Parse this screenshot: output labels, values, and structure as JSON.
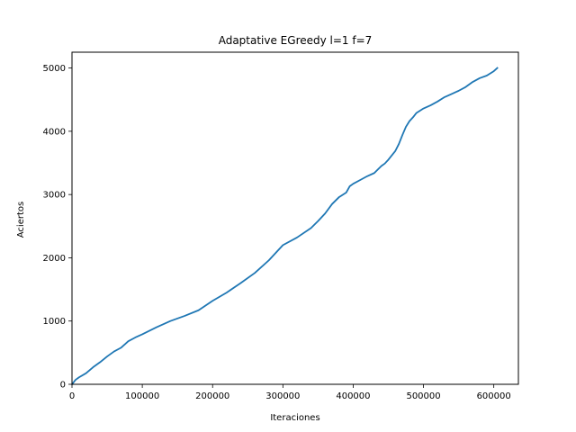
{
  "chart_data": {
    "type": "line",
    "title": "Adaptative EGreedy l=1 f=7",
    "xlabel": "Iteraciones",
    "ylabel": "Aciertos",
    "xlim": [
      0,
      635000
    ],
    "ylim": [
      0,
      5250
    ],
    "grid": false,
    "x_ticks": [
      0,
      100000,
      200000,
      300000,
      400000,
      500000,
      600000
    ],
    "x_tick_labels": [
      "0",
      "100000",
      "200000",
      "300000",
      "400000",
      "500000",
      "600000"
    ],
    "y_ticks": [
      0,
      1000,
      2000,
      3000,
      4000,
      5000
    ],
    "y_tick_labels": [
      "0",
      "1000",
      "2000",
      "3000",
      "4000",
      "5000"
    ],
    "series": [
      {
        "color": "#1f77b4",
        "x": [
          0,
          5000,
          10000,
          20000,
          30000,
          40000,
          50000,
          60000,
          70000,
          80000,
          90000,
          100000,
          120000,
          140000,
          160000,
          180000,
          200000,
          220000,
          240000,
          260000,
          280000,
          300000,
          320000,
          340000,
          350000,
          360000,
          370000,
          380000,
          390000,
          395000,
          400000,
          410000,
          420000,
          430000,
          440000,
          445000,
          450000,
          460000,
          465000,
          470000,
          475000,
          480000,
          485000,
          490000,
          500000,
          510000,
          520000,
          530000,
          540000,
          550000,
          560000,
          570000,
          580000,
          590000,
          600000,
          605000
        ],
        "y": [
          0,
          70,
          110,
          175,
          270,
          350,
          440,
          520,
          580,
          680,
          740,
          790,
          900,
          1000,
          1080,
          1170,
          1320,
          1450,
          1600,
          1760,
          1960,
          2200,
          2320,
          2470,
          2580,
          2700,
          2850,
          2960,
          3030,
          3130,
          3170,
          3230,
          3290,
          3340,
          3450,
          3490,
          3550,
          3690,
          3800,
          3940,
          4070,
          4160,
          4220,
          4290,
          4360,
          4410,
          4470,
          4540,
          4590,
          4640,
          4700,
          4780,
          4840,
          4880,
          4950,
          5000
        ]
      }
    ]
  }
}
